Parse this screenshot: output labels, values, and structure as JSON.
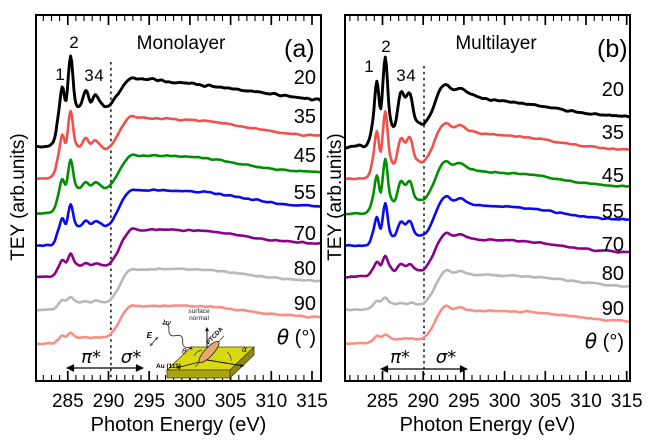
{
  "chart_data": {
    "type": "line",
    "xlabel": "Photon Energy (eV)",
    "ylabel": "TEY (arb.units)",
    "theta_symbol": "θ",
    "theta_unit": " (°)",
    "energies": [
      280.4,
      282.0,
      283.2,
      283.8,
      284.3,
      284.8,
      285.35,
      285.9,
      286.5,
      287.2,
      287.8,
      288.4,
      289.0,
      289.6,
      290.2,
      291.0,
      292.0,
      292.8,
      293.6,
      294.6,
      295.6,
      297.0,
      299.0,
      301.0,
      303.0,
      305.0,
      307.0,
      309.0,
      311.0,
      313.0,
      315.0,
      316.2
    ],
    "panels": [
      {
        "id": "a",
        "title": "Monolayer",
        "tag": "(a)",
        "x_range": [
          281.1,
          316.1
        ],
        "x_ticks": [
          285,
          290,
          295,
          300,
          305,
          310,
          315
        ],
        "x_minor_step": 1,
        "dashed_ev": 290.3,
        "angle_x": 316,
        "peaks": [
          {
            "t": "1",
            "x": 60,
            "y": 80
          },
          {
            "t": "2",
            "x": 74,
            "y": 48
          },
          {
            "t": "3",
            "x": 89,
            "y": 81
          },
          {
            "t": "4",
            "x": 99,
            "y": 81
          }
        ],
        "pi_sigma": {
          "pi": "π*",
          "sigma": "σ*",
          "pi_x": 91,
          "pi_y": 363,
          "s_x": 131,
          "s_y": 363,
          "ax1": 66,
          "ax2": 144,
          "ay": 368
        },
        "inset": {
          "line1": "surface",
          "line2": "normal",
          "photon": "hν",
          "field": "E",
          "molecule": "PTCDA",
          "substrate": "Au (111)",
          "theta": "θ",
          "alpha": "α"
        },
        "series": [
          {
            "angle": 20,
            "color": "#000000",
            "lw": 2.9,
            "noise": 1.0,
            "baseline": 63.9,
            "label_y": 77,
            "y": [
              0,
              0.3,
              1.5,
              8,
              16.5,
              13,
              25,
              13,
              11.5,
              15.5,
              12.5,
              14.5,
              12.5,
              11.2,
              11.8,
              14,
              17.5,
              19,
              18.8,
              18.5,
              18.3,
              17.9,
              17.5,
              17.1,
              16.6,
              16,
              15.4,
              14.8,
              14.2,
              13.6,
              13.1,
              12.9
            ]
          },
          {
            "angle": 35,
            "color": "#f2504b",
            "lw": 2.6,
            "noise": 0.65,
            "baseline": 55.2,
            "label_y": 116,
            "y": [
              0,
              0.2,
              1.2,
              6,
              12,
              10,
              18.5,
              10.5,
              9,
              11,
              9.5,
              10.5,
              9.5,
              8.3,
              9,
              11.5,
              15.5,
              17,
              16.8,
              16.6,
              16.5,
              16.4,
              16.2,
              16,
              15.6,
              14.9,
              14.2,
              13.4,
              12.8,
              12.3,
              12,
              11.9
            ]
          },
          {
            "angle": 45,
            "color": "#008f00",
            "lw": 2.6,
            "noise": 0.6,
            "baseline": 45.6,
            "label_y": 155,
            "y": [
              0,
              0.2,
              1,
              5,
              9.5,
              8,
              15,
              8.5,
              7.2,
              8.8,
              7.8,
              8.8,
              8,
              7,
              7.8,
              10.5,
              14.5,
              16.2,
              16,
              15.9,
              16,
              15.9,
              15.7,
              15.5,
              15,
              14.2,
              13.4,
              12.6,
              12.1,
              11.8,
              11.6,
              11.5
            ]
          },
          {
            "angle": 55,
            "color": "#0a0aef",
            "lw": 2.6,
            "noise": 0.6,
            "baseline": 36.9,
            "label_y": 192,
            "y": [
              0,
              0.2,
              0.8,
              4,
              7.5,
              6.2,
              11.5,
              6.5,
              5.5,
              6.8,
              6,
              6.8,
              6.2,
              5.4,
              6.2,
              9,
              13.5,
              15.3,
              15.2,
              15.1,
              15.2,
              15.1,
              15,
              14.8,
              14.4,
              13.7,
              12.9,
              12.2,
              11.6,
              11.2,
              11,
              10.9
            ]
          },
          {
            "angle": 70,
            "color": "#8b008b",
            "lw": 2.6,
            "noise": 0.55,
            "baseline": 28.4,
            "label_y": 233,
            "y": [
              0,
              0.1,
              0.5,
              2.5,
              4.5,
              4,
              6.3,
              4,
              3.2,
              3.8,
              3.4,
              3.8,
              3.5,
              3.2,
              3.8,
              6.5,
              11,
              13,
              12.9,
              12.8,
              12.9,
              12.9,
              12.8,
              12.7,
              12.4,
              11.8,
              11.1,
              10.4,
              9.9,
              9.5,
              9.3,
              9.2
            ]
          },
          {
            "angle": 80,
            "color": "#b8b8b8",
            "lw": 2.6,
            "noise": 0.5,
            "baseline": 19.4,
            "label_y": 268,
            "y": [
              0,
              0.1,
              0.3,
              1.5,
              2.8,
              2.6,
              3.7,
              2.6,
              2.1,
              2.4,
              2.2,
              2.4,
              2.3,
              2.2,
              2.8,
              5.2,
              9.5,
              11.2,
              11.1,
              11.1,
              11.2,
              11.2,
              11.1,
              11,
              10.8,
              10.3,
              9.7,
              9.1,
              8.6,
              8.3,
              8.1,
              8
            ]
          },
          {
            "angle": 90,
            "color": "#fa8e85",
            "lw": 2.6,
            "noise": 0.55,
            "baseline": 10.1,
            "label_y": 303,
            "y": [
              0,
              0.1,
              0.3,
              1.2,
              2.3,
              2.1,
              3,
              2.1,
              1.7,
              2,
              1.8,
              2,
              1.9,
              1.9,
              2.5,
              4.8,
              8.8,
              10.4,
              10.3,
              10.3,
              10.4,
              10.4,
              10.4,
              10.3,
              10.1,
              9.6,
              9,
              8.4,
              8,
              7.6,
              7.4,
              7.3
            ]
          }
        ]
      },
      {
        "id": "b",
        "title": "Multilayer",
        "tag": "(b)",
        "x_range": [
          280.4,
          315.4
        ],
        "x_ticks": [
          285,
          290,
          295,
          300,
          305,
          310,
          315
        ],
        "x_minor_step": 1,
        "dashed_ev": 290.1,
        "angle_x": 624,
        "peaks": [
          {
            "t": "1",
            "x": 369,
            "y": 72
          },
          {
            "t": "2",
            "x": 386,
            "y": 52
          },
          {
            "t": "3",
            "x": 401,
            "y": 81
          },
          {
            "t": "4",
            "x": 411,
            "y": 81
          }
        ],
        "pi_sigma": {
          "pi": "π*",
          "sigma": "σ*",
          "pi_x": 400,
          "pi_y": 363,
          "s_x": 446,
          "s_y": 363,
          "ax1": 380,
          "ax2": 468,
          "ay": 369
        },
        "series": [
          {
            "angle": 20,
            "color": "#000000",
            "lw": 2.9,
            "noise": 0.9,
            "baseline": 63.9,
            "label_y": 89,
            "y": [
              0,
              0.2,
              1,
              7,
              18,
              10.5,
              24.5,
              9,
              5.8,
              15,
              13.5,
              14.8,
              8,
              6.3,
              6.8,
              9.5,
              15.5,
              17,
              15.8,
              16.2,
              14.8,
              13.5,
              12.8,
              12.3,
              11.8,
              11,
              10.2,
              9.5,
              9,
              8.6,
              8.4,
              8.3
            ]
          },
          {
            "angle": 35,
            "color": "#f2504b",
            "lw": 2.6,
            "noise": 0.6,
            "baseline": 55.2,
            "label_y": 132,
            "y": [
              0,
              0.2,
              0.8,
              5.5,
              13,
              7.5,
              18.5,
              7,
              4.5,
              11,
              10,
              11.3,
              6,
              4.8,
              5.2,
              8,
              13.5,
              15.5,
              14.2,
              14.8,
              13.3,
              12.5,
              12,
              11.8,
              11.4,
              10.7,
              9.9,
              9.2,
              8.7,
              8.3,
              8.1,
              8
            ]
          },
          {
            "angle": 45,
            "color": "#008f00",
            "lw": 2.6,
            "noise": 0.55,
            "baseline": 45.6,
            "label_y": 175,
            "y": [
              0,
              0.1,
              0.7,
              4.5,
              10.5,
              6,
              15,
              5.6,
              3.6,
              8.8,
              8,
              9,
              4.8,
              3.8,
              4.2,
              7,
              12.5,
              14.5,
              13.3,
              13.9,
              12.5,
              11.8,
              11.4,
              11.2,
              10.8,
              10.2,
              9.4,
              8.7,
              8.2,
              7.8,
              7.6,
              7.5
            ]
          },
          {
            "angle": 55,
            "color": "#0a0aef",
            "lw": 2.6,
            "noise": 0.55,
            "baseline": 36.9,
            "label_y": 211,
            "y": [
              0,
              0.1,
              0.5,
              3.5,
              8,
              4.5,
              11.5,
              4.2,
              2.8,
              6.6,
              6,
              6.8,
              3.6,
              2.9,
              3.3,
              6,
              11.5,
              13.5,
              12.4,
              12.9,
              11.7,
              11.1,
              10.8,
              10.6,
              10.2,
              9.7,
              9,
              8.3,
              7.8,
              7.4,
              7.2,
              7.1
            ]
          },
          {
            "angle": 70,
            "color": "#8b008b",
            "lw": 2.6,
            "noise": 0.5,
            "baseline": 28.4,
            "label_y": 244,
            "y": [
              0,
              0.1,
              0.4,
              2.2,
              4.2,
              3.2,
              5.8,
              3.1,
              1.8,
              3.4,
              3,
              3.5,
              2.2,
              1.8,
              2.4,
              5,
              10,
              12.2,
              11.4,
              11.8,
              10.8,
              10.3,
              10.1,
              10,
              9.7,
              9.2,
              8.5,
              7.9,
              7.4,
              7,
              6.8,
              6.7
            ]
          },
          {
            "angle": 80,
            "color": "#b8b8b8",
            "lw": 2.6,
            "noise": 0.5,
            "baseline": 19.4,
            "label_y": 273,
            "y": [
              0,
              0.1,
              0.3,
              1.3,
              2.6,
              2.3,
              3.4,
              2.2,
              1.6,
              1.9,
              1.7,
              1.9,
              1.6,
              1.5,
              2.2,
              4.5,
              8.8,
              10.8,
              10.2,
              10.6,
              9.9,
              9.6,
              9.5,
              9.4,
              9.2,
              8.8,
              8.3,
              7.7,
              7.2,
              6.8,
              6.6,
              6.5
            ]
          },
          {
            "angle": 90,
            "color": "#fa8e85",
            "lw": 2.6,
            "noise": 0.55,
            "baseline": 10.1,
            "label_y": 308,
            "y": [
              0,
              0.1,
              0.3,
              1.1,
              2.2,
              1.9,
              2.6,
              1.8,
              1.3,
              1.6,
              1.4,
              1.6,
              1.4,
              1.4,
              2,
              4.2,
              8.4,
              10.3,
              9.7,
              10,
              9.4,
              9.2,
              9.1,
              9,
              8.8,
              8.4,
              7.9,
              7.4,
              6.9,
              6.5,
              6.3,
              6.2
            ]
          }
        ]
      }
    ]
  }
}
